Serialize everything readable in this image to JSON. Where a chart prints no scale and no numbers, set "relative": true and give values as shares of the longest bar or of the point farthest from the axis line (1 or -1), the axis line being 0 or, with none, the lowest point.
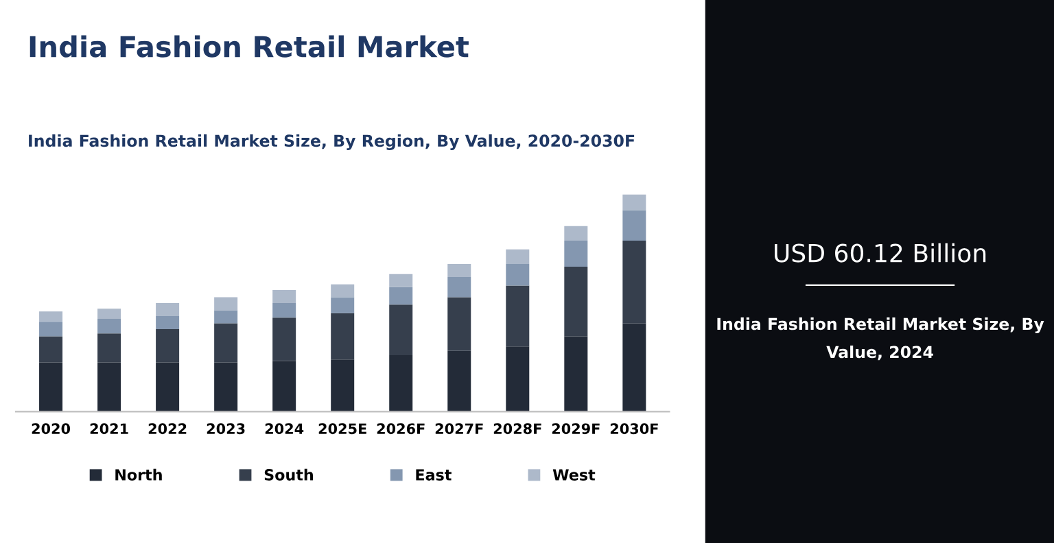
{
  "chart_data": [
    {
      "type": "bar",
      "title": "India Fashion Retail Market",
      "subtitle": "India Fashion Retail Market Size, By Region, By Value, 2020-2030F",
      "categories": [
        "2020",
        "2021",
        "2022",
        "2023",
        "2024",
        "2025E",
        "2026F",
        "2027F",
        "2028F",
        "2029F",
        "2030F"
      ],
      "stacked": true,
      "relative": true,
      "legend": "bottom",
      "grid": false,
      "series": [
        {
          "name": "North",
          "color": "#232b38",
          "values": [
            0.227,
            0.227,
            0.227,
            0.227,
            0.233,
            0.24,
            0.26,
            0.28,
            0.3,
            0.347,
            0.407
          ]
        },
        {
          "name": "South",
          "color": "#363f4d",
          "values": [
            0.12,
            0.133,
            0.153,
            0.18,
            0.2,
            0.213,
            0.233,
            0.247,
            0.28,
            0.32,
            0.38
          ]
        },
        {
          "name": "East",
          "color": "#8497b0",
          "values": [
            0.067,
            0.067,
            0.06,
            0.06,
            0.067,
            0.073,
            0.08,
            0.093,
            0.1,
            0.12,
            0.14
          ]
        },
        {
          "name": "West",
          "color": "#adb9ca",
          "values": [
            0.047,
            0.047,
            0.06,
            0.06,
            0.06,
            0.06,
            0.06,
            0.06,
            0.067,
            0.067,
            0.073
          ]
        }
      ]
    },
    {
      "type": "other",
      "title": "USD 60.12 Billion",
      "subtitle": "India Fashion Retail Market Size, By Value, 2024"
    }
  ]
}
